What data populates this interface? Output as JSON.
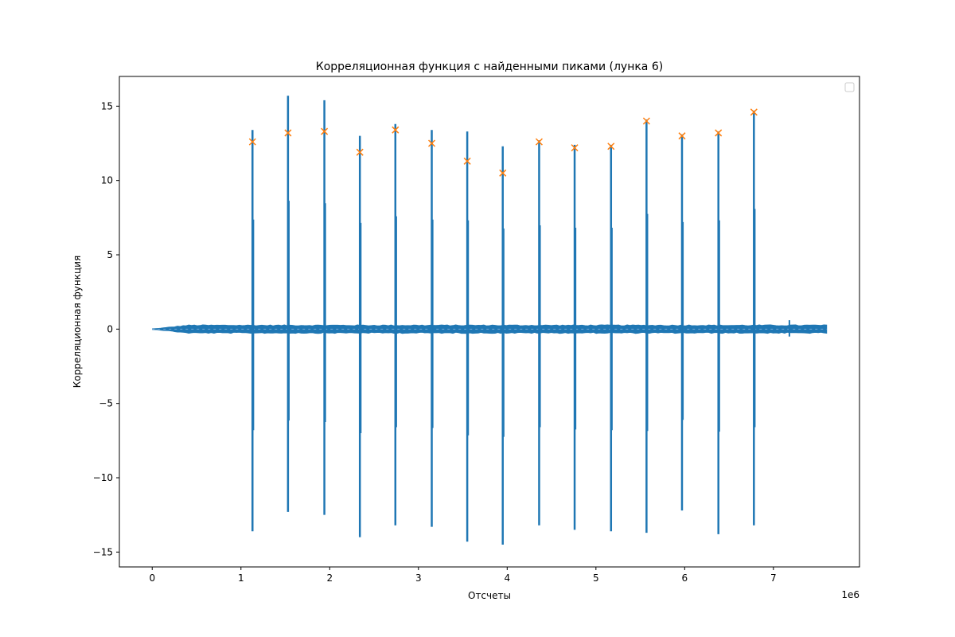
{
  "chart_data": {
    "type": "line",
    "title": "Корреляционная функция с найденными пиками (лунка 6)",
    "xlabel": "Отсчеты",
    "ylabel": "Корреляционная функция",
    "x_offset_label": "1e6",
    "xlim": [
      -370000,
      7970000
    ],
    "ylim": [
      -16.0,
      17.0
    ],
    "x_ticks": [
      0,
      1,
      2,
      3,
      4,
      5,
      6,
      7
    ],
    "x_tick_labels": [
      "0",
      "1",
      "2",
      "3",
      "4",
      "5",
      "6",
      "7"
    ],
    "y_ticks": [
      -15,
      -10,
      -5,
      0,
      5,
      10,
      15
    ],
    "y_tick_labels": [
      "−15",
      "−10",
      "−5",
      "0",
      "5",
      "10",
      "15"
    ],
    "grid": false,
    "legend": "top-right (empty)",
    "colors": {
      "series": "#1f77b4",
      "peaks": "#ff7f0e",
      "axes": "#000000",
      "background": "#ffffff"
    },
    "series": [
      {
        "kind": "correlation-signal",
        "x_range": [
          0,
          7600000
        ],
        "baseline": 0.0,
        "baseline_noise": 0.25,
        "spikes": [
          {
            "x": 1130000,
            "max": 13.4,
            "min": -13.6
          },
          {
            "x": 1530000,
            "max": 15.7,
            "min": -12.3
          },
          {
            "x": 1940000,
            "max": 15.4,
            "min": -12.5
          },
          {
            "x": 2340000,
            "max": 13.0,
            "min": -14.0
          },
          {
            "x": 2740000,
            "max": 13.8,
            "min": -13.2
          },
          {
            "x": 3150000,
            "max": 13.4,
            "min": -13.3
          },
          {
            "x": 3550000,
            "max": 13.3,
            "min": -14.3
          },
          {
            "x": 3950000,
            "max": 12.3,
            "min": -14.5
          },
          {
            "x": 4360000,
            "max": 12.7,
            "min": -13.2
          },
          {
            "x": 4760000,
            "max": 12.4,
            "min": -13.5
          },
          {
            "x": 5170000,
            "max": 12.4,
            "min": -13.6
          },
          {
            "x": 5570000,
            "max": 14.1,
            "min": -13.7
          },
          {
            "x": 5970000,
            "max": 13.1,
            "min": -12.2
          },
          {
            "x": 6380000,
            "max": 13.3,
            "min": -13.8
          },
          {
            "x": 6780000,
            "max": 14.7,
            "min": -13.2
          }
        ],
        "small_spike": {
          "x": 7180000,
          "max": 0.6,
          "min": -0.5
        }
      },
      {
        "kind": "peaks",
        "marker": "x",
        "points": [
          [
            1130000,
            12.6
          ],
          [
            1530000,
            13.2
          ],
          [
            1940000,
            13.3
          ],
          [
            2340000,
            11.9
          ],
          [
            2740000,
            13.4
          ],
          [
            3150000,
            12.5
          ],
          [
            3550000,
            11.3
          ],
          [
            3950000,
            10.5
          ],
          [
            4360000,
            12.6
          ],
          [
            4760000,
            12.2
          ],
          [
            5170000,
            12.3
          ],
          [
            5570000,
            14.0
          ],
          [
            5970000,
            13.0
          ],
          [
            6380000,
            13.2
          ],
          [
            6780000,
            14.6
          ]
        ]
      }
    ]
  }
}
